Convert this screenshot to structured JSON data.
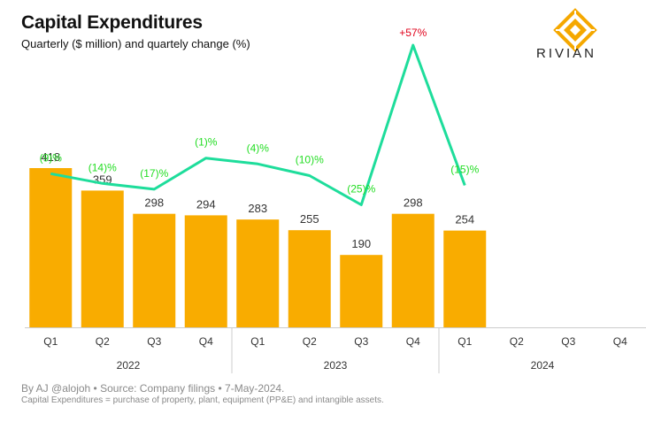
{
  "header": {
    "title": "Capital Expenditures",
    "subtitle": "Quarterly ($ million) and quartely change (%)"
  },
  "brand": {
    "name": "RIVIAN",
    "logo_icon": "rivian-compass-icon",
    "logo_color": "#F5A800"
  },
  "footer": {
    "source": "By AJ @alojoh • Source: Company filings • 7-May-2024.",
    "note": "Capital Expenditures = purchase of property, plant, equipment (PP&E) and intangible assets."
  },
  "colors": {
    "bar": "#F9AC00",
    "line": "#1EDD9B",
    "positive_label": "#E0001A",
    "negative_label": "#22DD22",
    "text": "#333333",
    "axis": "#cccccc"
  },
  "chart_data": {
    "type": "bar",
    "categories": [
      "Q1",
      "Q2",
      "Q3",
      "Q4",
      "Q1",
      "Q2",
      "Q3",
      "Q4",
      "Q1",
      "Q2",
      "Q3",
      "Q4"
    ],
    "groups": [
      {
        "label": "2022",
        "span": 4
      },
      {
        "label": "2023",
        "span": 4
      },
      {
        "label": "2024",
        "span": 4
      }
    ],
    "values": [
      418,
      359,
      298,
      294,
      283,
      255,
      190,
      298,
      254,
      null,
      null,
      null
    ],
    "value_labels": [
      "418",
      "359",
      "298",
      "294",
      "283",
      "255",
      "190",
      "298",
      "254",
      "",
      "",
      ""
    ],
    "change_series": {
      "values": [
        -9,
        -14,
        -17,
        -1,
        -4,
        -10,
        -25,
        57,
        -15,
        null,
        null,
        null
      ],
      "labels": [
        "(9)%",
        "(14)%",
        "(17)%",
        "(1)%",
        "(4)%",
        "(10)%",
        "(25)%",
        "+57%",
        "(15)%",
        "",
        "",
        ""
      ]
    },
    "ylim": [
      0,
      450
    ],
    "grid": false
  }
}
